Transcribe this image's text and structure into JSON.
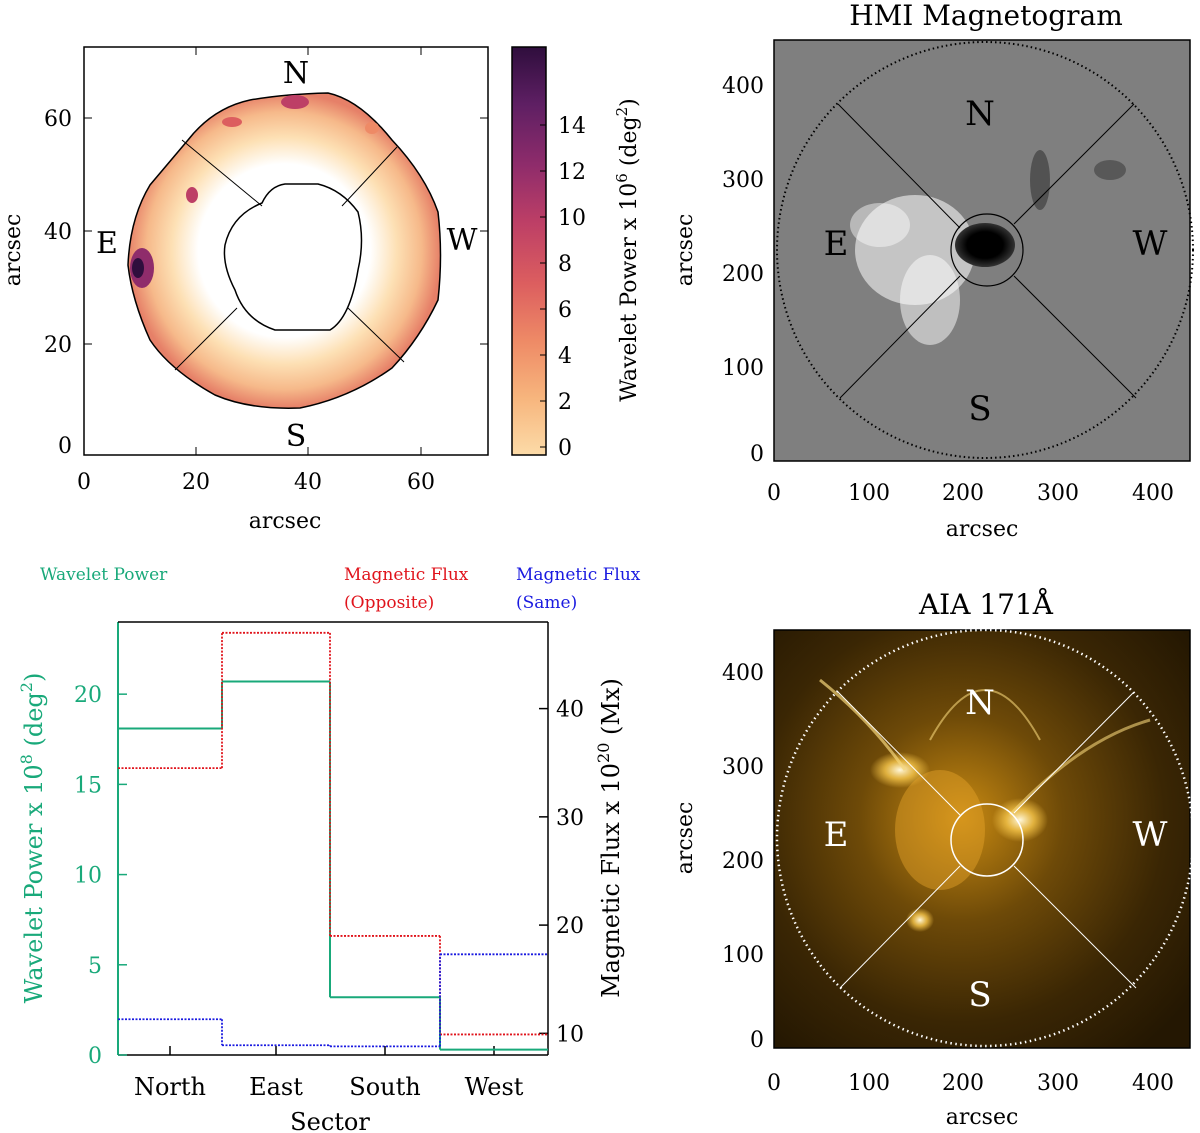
{
  "colors": {
    "green": "#19a97a",
    "red": "#e0141c",
    "blue": "#1a1ae0",
    "colormap": [
      "#fcdba8",
      "#f7b57d",
      "#ee8a66",
      "#dc5e5f",
      "#bd3f66",
      "#8f2c6b",
      "#5e1f63",
      "#2f0e3d"
    ]
  },
  "panels": {
    "power_map": {
      "xlabel": "arcsec",
      "ylabel": "arcsec",
      "xticks": [
        "0",
        "20",
        "40",
        "60"
      ],
      "yticks": [
        "0",
        "20",
        "40",
        "60"
      ],
      "sector_labels": {
        "N": "N",
        "E": "E",
        "W": "W",
        "S": "S"
      },
      "colorbar": {
        "label": "Wavelet Power x 10",
        "exponent": "6",
        "unit_open": " (deg",
        "unit_exp": "2",
        "unit_close": ")",
        "ticks": [
          "0",
          "2",
          "4",
          "6",
          "8",
          "10",
          "12",
          "14"
        ]
      }
    },
    "magnetogram": {
      "title": "HMI Magnetogram",
      "xlabel": "arcsec",
      "ylabel": "arcsec",
      "xticks": [
        "0",
        "100",
        "200",
        "300",
        "400"
      ],
      "yticks": [
        "0",
        "100",
        "200",
        "300",
        "400"
      ],
      "sector_labels": {
        "N": "N",
        "E": "E",
        "W": "W",
        "S": "S"
      }
    },
    "aia": {
      "title": "AIA 171Å",
      "xlabel": "arcsec",
      "ylabel": "arcsec",
      "xticks": [
        "0",
        "100",
        "200",
        "300",
        "400"
      ],
      "yticks": [
        "0",
        "100",
        "200",
        "300",
        "400"
      ],
      "sector_labels": {
        "N": "N",
        "E": "E",
        "W": "W",
        "S": "S"
      }
    },
    "histogram": {
      "legend": {
        "power": "Wavelet Power",
        "opposite_line1": "Magnetic Flux",
        "opposite_line2": "(Opposite)",
        "same_line1": "Magnetic Flux",
        "same_line2": "(Same)"
      },
      "left_ylabel": {
        "main": "Wavelet Power x 10",
        "exp": "8",
        "unit_open": " (deg",
        "unit_exp": "2",
        "unit_close": ")"
      },
      "right_ylabel": {
        "main": "Magnetic Flux x 10",
        "exp": "20",
        "unit": " (Mx)"
      },
      "xlabel": "Sector"
    }
  },
  "chart_data": {
    "type": "bar",
    "categories": [
      "North",
      "East",
      "South",
      "West"
    ],
    "left_axis": {
      "ylim": [
        0,
        24
      ],
      "ticks": [
        0,
        5,
        10,
        15,
        20
      ]
    },
    "right_axis": {
      "ylim": [
        8,
        48
      ],
      "ticks": [
        10,
        20,
        30,
        40
      ]
    },
    "series": [
      {
        "name": "Wavelet Power",
        "axis": "left",
        "color": "#19a97a",
        "values": [
          18.1,
          20.7,
          3.2,
          0.3
        ]
      },
      {
        "name": "Magnetic Flux (Opposite)",
        "axis": "right",
        "color": "#e0141c",
        "values": [
          34.5,
          47.0,
          19.0,
          9.9
        ]
      },
      {
        "name": "Magnetic Flux (Same)",
        "axis": "right",
        "color": "#1a1ae0",
        "values": [
          11.3,
          8.9,
          8.8,
          17.3
        ]
      }
    ]
  }
}
